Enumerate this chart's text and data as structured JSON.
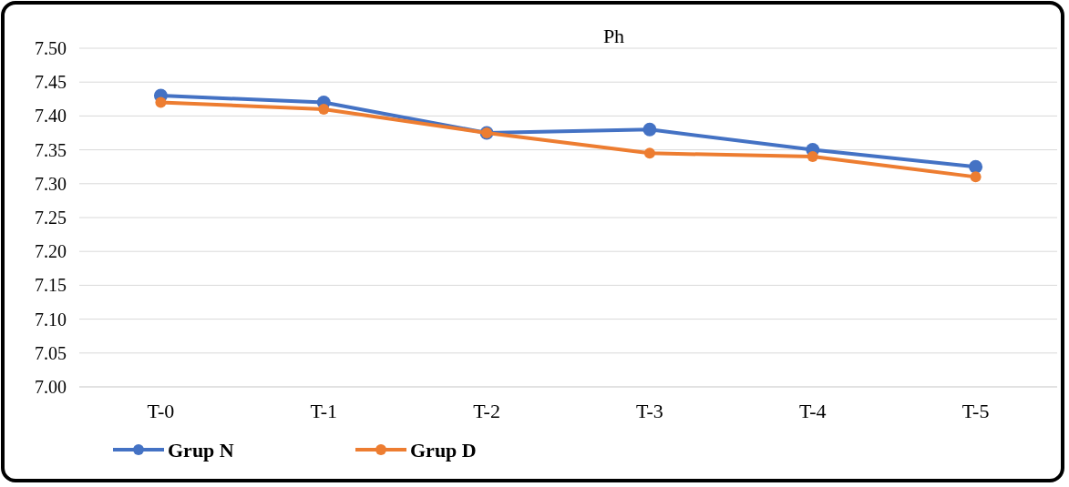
{
  "chart_data": {
    "type": "line",
    "title": "Ph",
    "categories": [
      "T-0",
      "T-1",
      "T-2",
      "T-3",
      "T-4",
      "T-5"
    ],
    "series": [
      {
        "name": "Grup N",
        "color": "#4472c4",
        "values": [
          7.43,
          7.42,
          7.375,
          7.38,
          7.35,
          7.325
        ]
      },
      {
        "name": "Grup D",
        "color": "#ed7d31",
        "values": [
          7.42,
          7.41,
          7.375,
          7.345,
          7.34,
          7.31
        ]
      }
    ],
    "ylim": [
      7.0,
      7.5
    ],
    "yticks": [
      {
        "value": 7,
        "label": "7.00"
      },
      7.05,
      {
        "value": 7.1,
        "label": "7.10"
      },
      7.15,
      {
        "value": 7.2,
        "label": "7.20"
      },
      7.25,
      {
        "value": 7.3,
        "label": "7.30"
      },
      7.35,
      {
        "value": 7.4,
        "label": "7.40"
      },
      7.45,
      {
        "value": 7.5,
        "label": "7.50"
      }
    ],
    "grid": "y",
    "legend": "bottom left",
    "marker": "circle",
    "line_style": "solid"
  }
}
